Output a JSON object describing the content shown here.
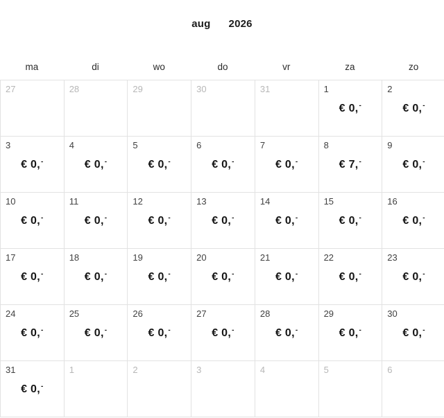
{
  "header": {
    "month_label": "aug",
    "year_label": "2026"
  },
  "weekday_labels": [
    "ma",
    "di",
    "wo",
    "do",
    "vr",
    "za",
    "zo"
  ],
  "calendar": {
    "days": [
      {
        "day": "27",
        "price": "",
        "other_month": true
      },
      {
        "day": "28",
        "price": "",
        "other_month": true
      },
      {
        "day": "29",
        "price": "",
        "other_month": true
      },
      {
        "day": "30",
        "price": "",
        "other_month": true
      },
      {
        "day": "31",
        "price": "",
        "other_month": true
      },
      {
        "day": "1",
        "price": "€ 0,-",
        "other_month": false
      },
      {
        "day": "2",
        "price": "€ 0,-",
        "other_month": false
      },
      {
        "day": "3",
        "price": "€ 0,-",
        "other_month": false
      },
      {
        "day": "4",
        "price": "€ 0,-",
        "other_month": false
      },
      {
        "day": "5",
        "price": "€ 0,-",
        "other_month": false
      },
      {
        "day": "6",
        "price": "€ 0,-",
        "other_month": false
      },
      {
        "day": "7",
        "price": "€ 0,-",
        "other_month": false
      },
      {
        "day": "8",
        "price": "€ 7,-",
        "other_month": false
      },
      {
        "day": "9",
        "price": "€ 0,-",
        "other_month": false
      },
      {
        "day": "10",
        "price": "€ 0,-",
        "other_month": false
      },
      {
        "day": "11",
        "price": "€ 0,-",
        "other_month": false
      },
      {
        "day": "12",
        "price": "€ 0,-",
        "other_month": false
      },
      {
        "day": "13",
        "price": "€ 0,-",
        "other_month": false
      },
      {
        "day": "14",
        "price": "€ 0,-",
        "other_month": false
      },
      {
        "day": "15",
        "price": "€ 0,-",
        "other_month": false
      },
      {
        "day": "16",
        "price": "€ 0,-",
        "other_month": false
      },
      {
        "day": "17",
        "price": "€ 0,-",
        "other_month": false
      },
      {
        "day": "18",
        "price": "€ 0,-",
        "other_month": false
      },
      {
        "day": "19",
        "price": "€ 0,-",
        "other_month": false
      },
      {
        "day": "20",
        "price": "€ 0,-",
        "other_month": false
      },
      {
        "day": "21",
        "price": "€ 0,-",
        "other_month": false
      },
      {
        "day": "22",
        "price": "€ 0,-",
        "other_month": false
      },
      {
        "day": "23",
        "price": "€ 0,-",
        "other_month": false
      },
      {
        "day": "24",
        "price": "€ 0,-",
        "other_month": false
      },
      {
        "day": "25",
        "price": "€ 0,-",
        "other_month": false
      },
      {
        "day": "26",
        "price": "€ 0,-",
        "other_month": false
      },
      {
        "day": "27",
        "price": "€ 0,-",
        "other_month": false
      },
      {
        "day": "28",
        "price": "€ 0,-",
        "other_month": false
      },
      {
        "day": "29",
        "price": "€ 0,-",
        "other_month": false
      },
      {
        "day": "30",
        "price": "€ 0,-",
        "other_month": false
      },
      {
        "day": "31",
        "price": "€ 0,-",
        "other_month": false
      },
      {
        "day": "1",
        "price": "",
        "other_month": true
      },
      {
        "day": "2",
        "price": "",
        "other_month": true
      },
      {
        "day": "3",
        "price": "",
        "other_month": true
      },
      {
        "day": "4",
        "price": "",
        "other_month": true
      },
      {
        "day": "5",
        "price": "",
        "other_month": true
      },
      {
        "day": "6",
        "price": "",
        "other_month": true
      }
    ]
  },
  "colors": {
    "header_text": "#1c1c1c",
    "weekday_text": "#2a2a2a",
    "day_number": "#414141",
    "muted_day": "#b7b7b7",
    "price_text": "#161616",
    "border": "#e2e2e2"
  }
}
